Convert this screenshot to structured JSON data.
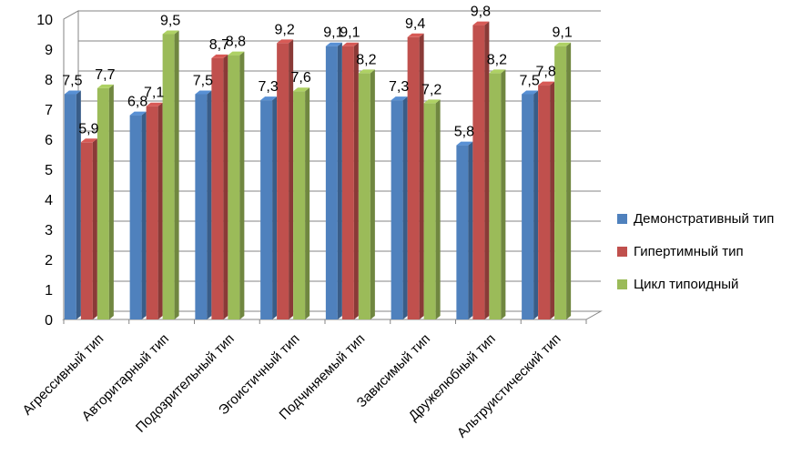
{
  "chart_data": {
    "type": "bar",
    "title": "",
    "xlabel": "",
    "ylabel": "",
    "ylim": [
      0,
      10
    ],
    "yticks": [
      "0",
      "1",
      "2",
      "3",
      "4",
      "5",
      "6",
      "7",
      "8",
      "9",
      "10"
    ],
    "categories": [
      "Агрессивный тип",
      "Авторитарный тип",
      "Подозрительный тип",
      "Эгоистичный тип",
      "Подчиняемый тип",
      "Зависимый тип",
      "Дружелюбный тип",
      "Альтруистический тип"
    ],
    "series": [
      {
        "name": "Демонстративный тип",
        "color": "#4f81bd",
        "values": [
          7.5,
          6.8,
          7.5,
          7.3,
          9.1,
          7.3,
          5.8,
          7.5
        ],
        "labels": [
          "7,5",
          "6,8",
          "7,5",
          "7,3",
          "9,1",
          "7,3",
          "5,8",
          "7,5"
        ]
      },
      {
        "name": "Гипертимный тип",
        "color": "#c0504d",
        "values": [
          5.9,
          7.1,
          8.7,
          9.2,
          9.1,
          9.4,
          9.8,
          7.8
        ],
        "labels": [
          "5,9",
          "7,1",
          "8,7",
          "9,2",
          "9,1",
          "9,4",
          "9,8",
          "7,8"
        ]
      },
      {
        "name": "Цикл типоидный",
        "color": "#9bbb59",
        "values": [
          7.7,
          9.5,
          8.8,
          7.6,
          8.2,
          7.2,
          8.2,
          9.1
        ],
        "labels": [
          "7,7",
          "9,5",
          "8,8",
          "7,6",
          "8,2",
          "7,2",
          "8,2",
          "9,1"
        ]
      }
    ],
    "legend_position": "right",
    "grid": true
  }
}
